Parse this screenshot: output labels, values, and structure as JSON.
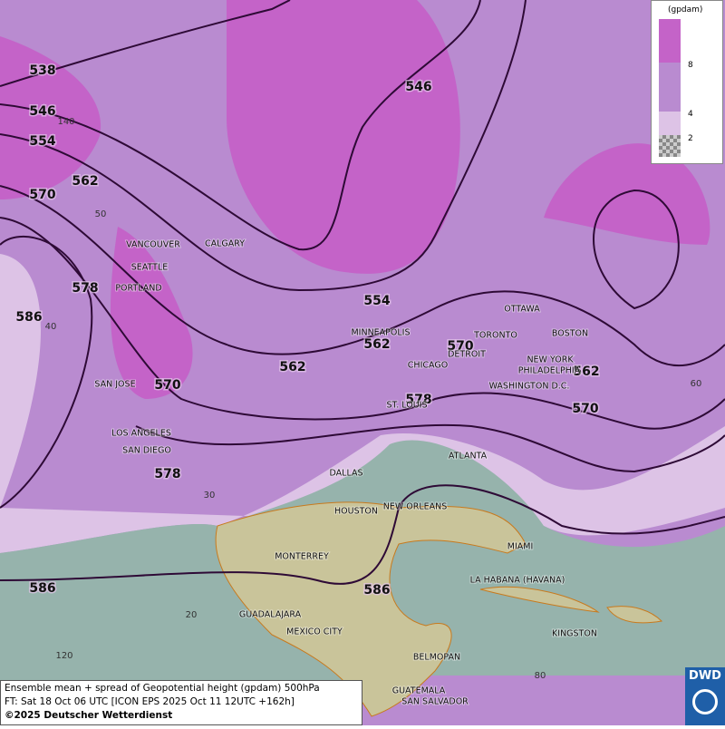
{
  "contour_labels": [
    538,
    546,
    554,
    570,
    562,
    578,
    586,
    546,
    554,
    562,
    562,
    570,
    570,
    578,
    578,
    562,
    570,
    586,
    586
  ],
  "cities": [
    "VANCOUVER",
    "CALGARY",
    "SEATTLE",
    "PORTLAND",
    "MINNEAPOLIS",
    "OTTAWA",
    "TORONTO",
    "BOSTON",
    "DETROIT",
    "CHICAGO",
    "NEW YORK",
    "PHILADELPHIA",
    "WASHINGTON D.C.",
    "SAN JOSE",
    "ST. LOUIS",
    "LOS ANGELES",
    "SAN DIEGO",
    "ATLANTA",
    "DALLAS",
    "HOUSTON",
    "NEW ORLEANS",
    "MIAMI",
    "MONTERREY",
    "LA HABANA (HAVANA)",
    "GUADALAJARA",
    "MEXICO CITY",
    "KINGSTON",
    "BELMOPAN",
    "GUATEMALA",
    "SAN SALVADOR"
  ],
  "graticule_labels": [
    140,
    50,
    40,
    30,
    20,
    120,
    60,
    80
  ],
  "legend": {
    "unit": "(gpdam)",
    "levels": [
      8,
      4,
      2
    ]
  },
  "caption": {
    "line1": "Ensemble mean + spread of Geopotential height (gpdam) 500hPa",
    "line2": "FT: Sat 18 Oct 06 UTC [ICON EPS 2025 Oct 11 12UTC +162h]",
    "copyright": "©2025 Deutscher Wetterdienst"
  },
  "logo": "DWD"
}
